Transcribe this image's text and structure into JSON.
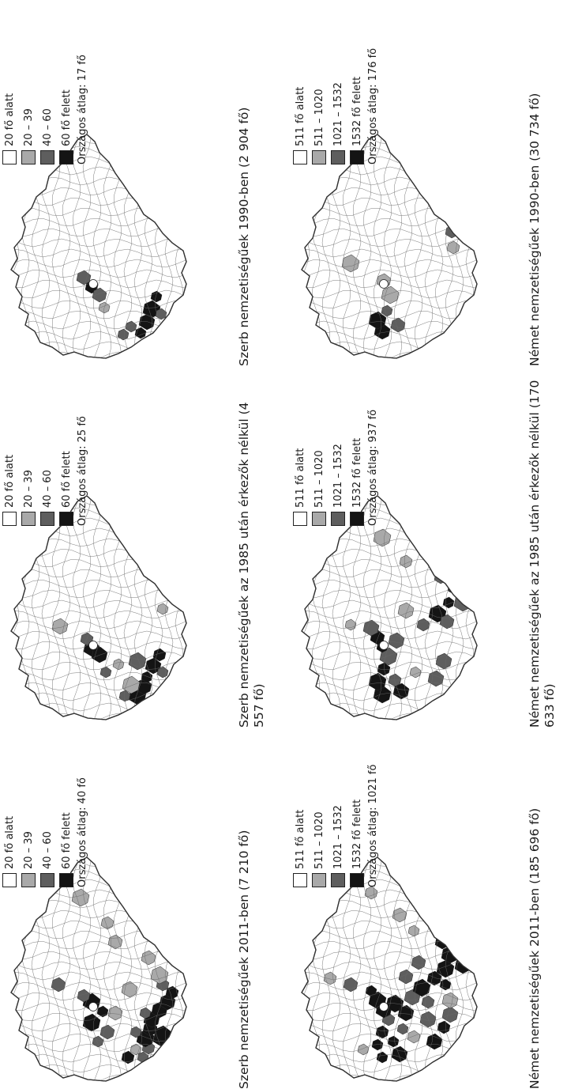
{
  "colors": {
    "c0": "#ffffff",
    "c1": "#a9a9a9",
    "c2": "#5e5e5e",
    "c3": "#141414"
  },
  "panels": [
    {
      "caption": "Szerb nemzetiségűek 2011-ben (7 210 fő)",
      "legend": [
        "20 fő alatt",
        "20 – 39",
        "40 – 60",
        "60 fő felett"
      ],
      "avg": "Országos átlag: 40 fő"
    },
    {
      "caption": "Szerb nemzetiségűek az 1985 után érkezők nélkül (4 557 fő)",
      "legend": [
        "20 fő alatt",
        "20 – 39",
        "40 – 60",
        "60 fő felett"
      ],
      "avg": "Országos átlag: 25 fő"
    },
    {
      "caption": "Szerb nemzetiségűek 1990-ben (2 904 fő)",
      "legend": [
        "20 fő alatt",
        "20 – 39",
        "40 – 60",
        "60 fő felett"
      ],
      "avg": "Országos átlag: 17 fő"
    },
    {
      "caption": "Német nemzetiségűek 2011-ben (185 696 fő)",
      "legend": [
        "511 fő alatt",
        "511 – 1020",
        "1021 – 1532",
        "1532 fő felett"
      ],
      "avg": "Országos átlag: 1021 fő"
    },
    {
      "caption": "Német nemzetiségűek az 1985 után érkezők nélkül (170 633 fő)",
      "legend": [
        "511 fő alatt",
        "511 – 1020",
        "1021 – 1532",
        "1532 fő felett"
      ],
      "avg": "Országos átlag: 937 fő"
    },
    {
      "caption": "Német nemzetiségűek 1990-ben (30 734 fő)",
      "legend": [
        "511 fő alatt",
        "511 – 1020",
        "1021 – 1532",
        "1532 fő felett"
      ],
      "avg": "Országos átlag: 176 fő"
    }
  ]
}
